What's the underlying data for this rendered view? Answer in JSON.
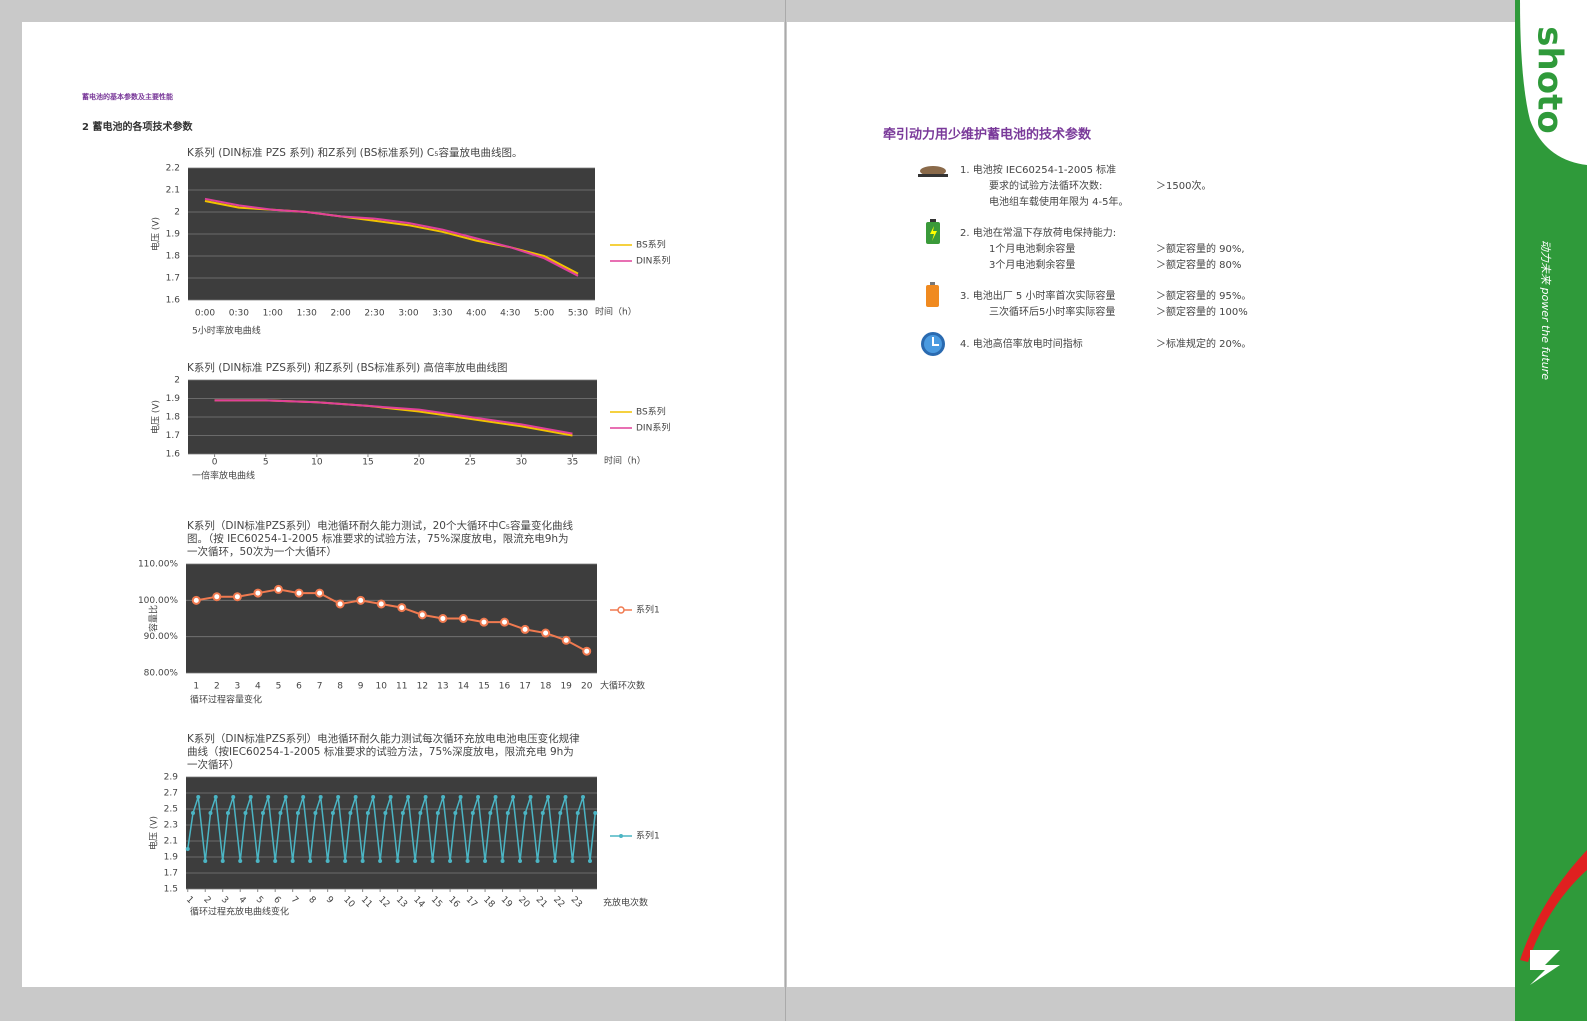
{
  "header": {
    "running_title": "蓄电池的基本参数及主要性能",
    "section_title": "2  蓄电池的各项技术参数"
  },
  "chart_data": [
    {
      "type": "line",
      "title": [
        "K系列 (DIN标准 PZS 系列) 和Z系列 (BS标准系列) C₅容量放电曲线图。"
      ],
      "y_label": "电压 (V)",
      "x_label": "时间（h）",
      "caption": "5小时率放电曲线",
      "categories": [
        "0:00",
        "0:30",
        "1:00",
        "1:30",
        "2:00",
        "2:30",
        "3:00",
        "3:30",
        "4:00",
        "4:30",
        "5:00",
        "5:30"
      ],
      "series": [
        {
          "name": "BS系列",
          "color": "#f2c200",
          "values": [
            2.05,
            2.02,
            2.01,
            2.0,
            1.98,
            1.96,
            1.94,
            1.91,
            1.87,
            1.84,
            1.8,
            1.72
          ]
        },
        {
          "name": "DIN系列",
          "color": "#e0409a",
          "values": [
            2.06,
            2.03,
            2.01,
            2.0,
            1.98,
            1.97,
            1.95,
            1.92,
            1.88,
            1.84,
            1.79,
            1.71
          ]
        }
      ],
      "ylim": [
        1.6,
        2.2
      ],
      "yticks": [
        1.6,
        1.7,
        1.8,
        1.9,
        2,
        2.1,
        2.2
      ],
      "grid": true
    },
    {
      "type": "line",
      "title": [
        "K系列 (DIN标准 PZS系列) 和Z系列 (BS标准系列) 高倍率放电曲线图"
      ],
      "y_label": "电压 (V)",
      "x_label": "时间（h）",
      "caption": "一倍率放电曲线",
      "x": [
        0,
        5,
        10,
        15,
        20,
        25,
        30,
        35
      ],
      "series": [
        {
          "name": "BS系列",
          "color": "#f2c200",
          "values": [
            1.89,
            1.89,
            1.88,
            1.86,
            1.83,
            1.79,
            1.75,
            1.7
          ]
        },
        {
          "name": "DIN系列",
          "color": "#e0409a",
          "values": [
            1.89,
            1.89,
            1.88,
            1.86,
            1.84,
            1.8,
            1.76,
            1.71
          ]
        }
      ],
      "xlim": [
        -2.6,
        37.4
      ],
      "xticks": [
        0,
        5,
        10,
        15,
        20,
        25,
        30,
        35
      ],
      "ylim": [
        1.6,
        2
      ],
      "yticks": [
        1.6,
        1.7,
        1.8,
        1.9,
        2
      ],
      "grid": true
    },
    {
      "type": "line",
      "title": [
        "K系列（DIN标准PZS系列）电池循环耐久能力测试，20个大循环中C₅容量变化曲线",
        "图。（按 IEC60254-1-2005 标准要求的试验方法，75%深度放电，限流充电9h为",
        "一次循环，50次为一个大循环）"
      ],
      "y_label": "容量比",
      "x_label": "大循环次数",
      "caption": "循环过程容量变化",
      "categories": [
        "1",
        "2",
        "3",
        "4",
        "5",
        "6",
        "7",
        "8",
        "9",
        "10",
        "11",
        "12",
        "13",
        "14",
        "15",
        "16",
        "17",
        "18",
        "19",
        "20"
      ],
      "series": [
        {
          "name": "系列1",
          "color": "#f07a50",
          "marker": "circle",
          "values": [
            100,
            101,
            101,
            102,
            103,
            102,
            102,
            99,
            100,
            99,
            98,
            96,
            95,
            95,
            94,
            94,
            92,
            91,
            89,
            86
          ]
        }
      ],
      "ylim": [
        80,
        110
      ],
      "yticks": [
        {
          "value": 80,
          "label": "80.00%"
        },
        {
          "value": 90,
          "label": "90.00%"
        },
        {
          "value": 100,
          "label": "100.00%"
        },
        {
          "value": 110,
          "label": "110.00%"
        }
      ],
      "grid": true
    },
    {
      "type": "line",
      "title": [
        "K系列（DIN标准PZS系列）电池循环耐久能力测试每次循环充放电电池电压变化规律",
        "曲线（按IEC60254-1-2005 标准要求的试验方法，75%深度放电，限流充电 9h为",
        "一次循环）"
      ],
      "y_label": "电压 (V)",
      "x_label": "充放电次数",
      "caption": "循环过程充放电曲线变化",
      "x": [
        1,
        1.3,
        1.6,
        2,
        2.3,
        2.6,
        3,
        3.3,
        3.6,
        4,
        4.3,
        4.6,
        5,
        5.3,
        5.6,
        6,
        6.3,
        6.6,
        7,
        7.3,
        7.6,
        8,
        8.3,
        8.6,
        9,
        9.3,
        9.6,
        10,
        10.3,
        10.6,
        11,
        11.3,
        11.6,
        12,
        12.3,
        12.6,
        13,
        13.3,
        13.6,
        14,
        14.3,
        14.6,
        15,
        15.3,
        15.6,
        16,
        16.3,
        16.6,
        17,
        17.3,
        17.6,
        18,
        18.3,
        18.6,
        19,
        19.3,
        19.6,
        20,
        20.3,
        20.6,
        21,
        21.3,
        21.6,
        22,
        22.3,
        22.6,
        23,
        23.3,
        23.6,
        24,
        24.3
      ],
      "series": [
        {
          "name": "系列1",
          "color": "#4bb5c4",
          "marker": "dot",
          "values": [
            2.0,
            2.45,
            2.65,
            1.85,
            2.45,
            2.65,
            1.85,
            2.45,
            2.65,
            1.85,
            2.45,
            2.65,
            1.85,
            2.45,
            2.65,
            1.85,
            2.45,
            2.65,
            1.85,
            2.45,
            2.65,
            1.85,
            2.45,
            2.65,
            1.85,
            2.45,
            2.65,
            1.85,
            2.45,
            2.65,
            1.85,
            2.45,
            2.65,
            1.85,
            2.45,
            2.65,
            1.85,
            2.45,
            2.65,
            1.85,
            2.45,
            2.65,
            1.85,
            2.45,
            2.65,
            1.85,
            2.45,
            2.65,
            1.85,
            2.45,
            2.65,
            1.85,
            2.45,
            2.65,
            1.85,
            2.45,
            2.65,
            1.85,
            2.45,
            2.65,
            1.85,
            2.45,
            2.65,
            1.85,
            2.45,
            2.65,
            1.85,
            2.45,
            2.65,
            1.85,
            2.45
          ]
        }
      ],
      "xlim": [
        0.9,
        24.4
      ],
      "xticks": [
        1,
        2,
        3,
        4,
        5,
        6,
        7,
        8,
        9,
        10,
        11,
        12,
        13,
        14,
        15,
        16,
        17,
        18,
        19,
        20,
        21,
        22,
        23
      ],
      "ylim": [
        1.5,
        2.9
      ],
      "yticks": [
        1.5,
        1.7,
        1.9,
        2.1,
        2.3,
        2.5,
        2.7,
        2.9
      ],
      "grid": true
    }
  ],
  "spec_sheet": {
    "title": "牵引动力用少维护蓄电池的技术参数",
    "items": [
      {
        "rows": [
          {
            "label": "1. 电池按 IEC60254-1-2005 标准"
          },
          {
            "label": "要求的试验方法循环次数:",
            "value": "＞1500次。"
          },
          {
            "label": "电池组车载使用年限为 4-5年。"
          }
        ]
      },
      {
        "rows": [
          {
            "label": "2. 电池在常温下存放荷电保持能力:"
          },
          {
            "label": "1个月电池剩余容量",
            "value": "＞额定容量的 90%,"
          },
          {
            "label": "3个月电池剩余容量",
            "value": "＞额定容量的 80%"
          }
        ]
      },
      {
        "rows": [
          {
            "label": "3. 电池出厂 5 小时率首次实际容量",
            "value": "＞额定容量的 95%。"
          },
          {
            "label": "三次循环后5小时率实际容量",
            "value": "＞额定容量的 100%"
          }
        ]
      },
      {
        "rows": [
          {
            "label": "4. 电池高倍率放电时间指标",
            "value": "＞标准规定的 20%。"
          }
        ]
      }
    ]
  },
  "sidebar": {
    "brand": "shoto",
    "slogan": "动力未来 power the future"
  }
}
